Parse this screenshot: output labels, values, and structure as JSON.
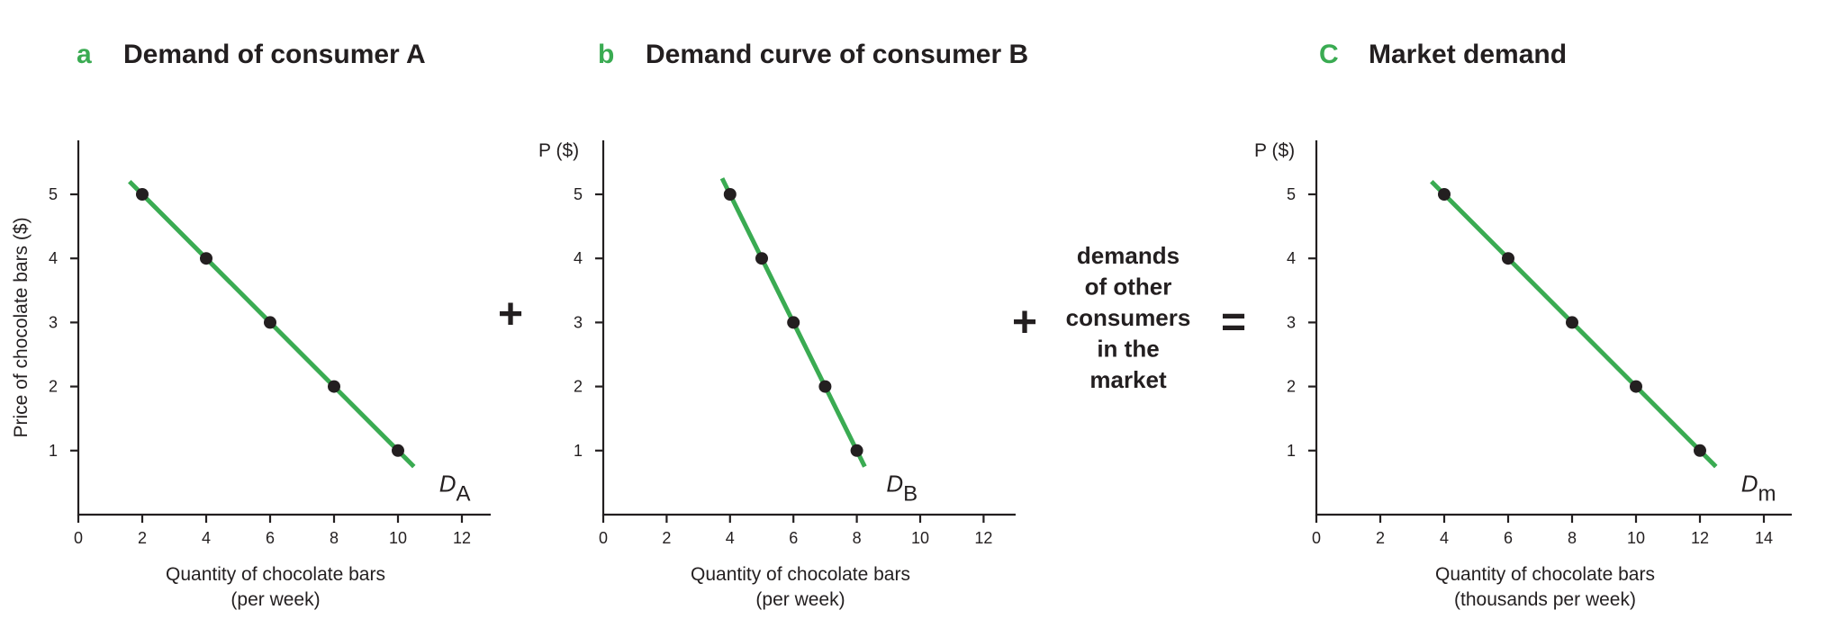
{
  "chart_data": [
    {
      "type": "line",
      "panel_letter": "a",
      "title": "Demand of consumer A",
      "xlabel": [
        "Quantity of chocolate bars",
        "(per week)"
      ],
      "ylabel": "Price of chocolate bars ($)",
      "yunit": "",
      "xlim": [
        0,
        13
      ],
      "ylim": [
        0,
        5.8
      ],
      "xticks": [
        0,
        2,
        4,
        6,
        8,
        10,
        12
      ],
      "yticks": [
        1,
        2,
        3,
        4,
        5
      ],
      "grid": false,
      "series": [
        {
          "name": "D",
          "name_subscript": "A",
          "color": "#3aab52",
          "points": [
            {
              "x": 2,
              "y": 5
            },
            {
              "x": 4,
              "y": 4
            },
            {
              "x": 6,
              "y": 3
            },
            {
              "x": 8,
              "y": 2
            },
            {
              "x": 10,
              "y": 1
            }
          ],
          "line_extent": [
            [
              1.6,
              5.2
            ],
            [
              10.5,
              0.75
            ]
          ]
        }
      ]
    },
    {
      "type": "line",
      "panel_letter": "b",
      "title": "Demand curve of consumer B",
      "xlabel": [
        "Quantity of chocolate bars",
        "(per week)"
      ],
      "ylabel": "",
      "yunit": "P ($)",
      "xlim": [
        0,
        13
      ],
      "ylim": [
        0,
        5.8
      ],
      "xticks": [
        0,
        2,
        4,
        6,
        8,
        10,
        12
      ],
      "yticks": [
        1,
        2,
        3,
        4,
        5
      ],
      "grid": false,
      "series": [
        {
          "name": "D",
          "name_subscript": "B",
          "color": "#3aab52",
          "points": [
            {
              "x": 4,
              "y": 5
            },
            {
              "x": 5,
              "y": 4
            },
            {
              "x": 6,
              "y": 3
            },
            {
              "x": 7,
              "y": 2
            },
            {
              "x": 8,
              "y": 1
            }
          ],
          "line_extent": [
            [
              3.75,
              5.25
            ],
            [
              8.25,
              0.75
            ]
          ]
        }
      ]
    },
    {
      "type": "line",
      "panel_letter": "C",
      "title": "Market demand",
      "xlabel": [
        "Quantity of chocolate bars",
        "(thousands per week)"
      ],
      "ylabel": "",
      "yunit": "P ($)",
      "xlim": [
        0,
        15
      ],
      "ylim": [
        0,
        5.8
      ],
      "xticks": [
        0,
        2,
        4,
        6,
        8,
        10,
        12,
        14
      ],
      "yticks": [
        1,
        2,
        3,
        4,
        5
      ],
      "grid": false,
      "series": [
        {
          "name": "D",
          "name_subscript": "m",
          "color": "#3aab52",
          "points": [
            {
              "x": 4,
              "y": 5
            },
            {
              "x": 6,
              "y": 4
            },
            {
              "x": 8,
              "y": 3
            },
            {
              "x": 10,
              "y": 2
            },
            {
              "x": 12,
              "y": 1
            }
          ],
          "line_extent": [
            [
              3.6,
              5.2
            ],
            [
              12.5,
              0.75
            ]
          ]
        }
      ]
    }
  ],
  "operators": {
    "plus_1": "+",
    "plus_2": "+",
    "equals": "="
  },
  "other_demands_text": [
    "demands",
    "of other",
    "consumers",
    "in the",
    "market"
  ]
}
